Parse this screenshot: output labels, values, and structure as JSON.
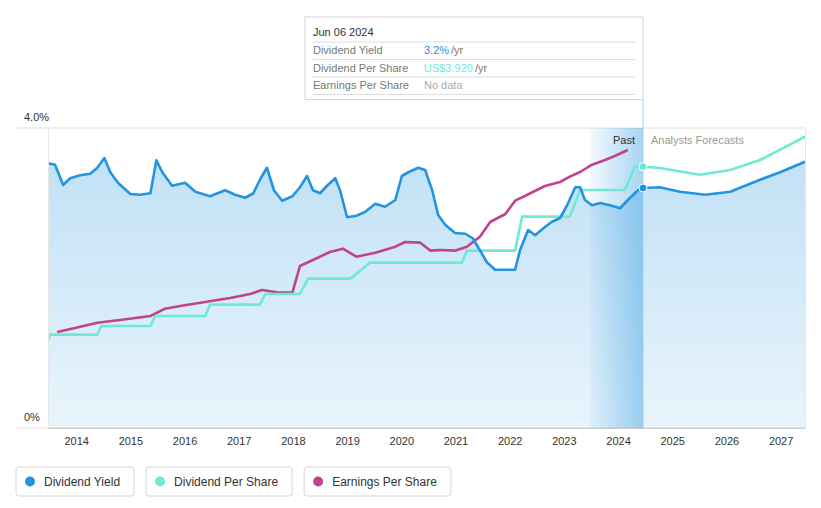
{
  "chart_data": {
    "type": "line",
    "xlim": [
      2013.48,
      2027.45
    ],
    "xticks": [
      2014,
      2015,
      2016,
      2017,
      2018,
      2019,
      2020,
      2021,
      2022,
      2023,
      2024,
      2025,
      2026,
      2027
    ],
    "ylim": [
      0,
      4
    ],
    "yticks": [
      {
        "value": 0,
        "label": "0%"
      },
      {
        "value": 4,
        "label": "4.0%"
      }
    ],
    "y2lim": [
      0,
      4.5
    ],
    "y2ticks": [],
    "tick_labels": "y",
    "grid": true,
    "legend": "bottom",
    "series": [
      {
        "name": "Dividend Yield",
        "color": "#2394df",
        "type": "area",
        "x": [
          2013.48,
          2013.61,
          2013.76,
          2013.89,
          2014.07,
          2014.26,
          2014.39,
          2014.52,
          2014.63,
          2014.77,
          2015.0,
          2015.18,
          2015.37,
          2015.48,
          2015.59,
          2015.77,
          2016.01,
          2016.2,
          2016.47,
          2016.75,
          2016.93,
          2017.12,
          2017.27,
          2017.39,
          2017.52,
          2017.65,
          2017.8,
          2017.99,
          2018.13,
          2018.26,
          2018.37,
          2018.5,
          2018.63,
          2018.78,
          2018.87,
          2019.0,
          2019.17,
          2019.33,
          2019.52,
          2019.7,
          2019.89,
          2020.01,
          2020.13,
          2020.31,
          2020.44,
          2020.57,
          2020.68,
          2020.81,
          2020.99,
          2021.18,
          2021.32,
          2021.45,
          2021.58,
          2021.73,
          2021.92,
          2022.1,
          2022.19,
          2022.34,
          2022.47,
          2022.65,
          2022.78,
          2022.93,
          2023.06,
          2023.21,
          2023.3,
          2023.39,
          2023.52,
          2023.67,
          2023.85,
          2024.04,
          2024.18,
          2024.37,
          2024.46,
          2024.77,
          2025.14,
          2025.61,
          2026.07,
          2026.62,
          2026.99,
          2027.45
        ],
        "values": [
          3.53,
          3.51,
          3.24,
          3.33,
          3.37,
          3.39,
          3.47,
          3.6,
          3.41,
          3.27,
          3.12,
          3.11,
          3.13,
          3.57,
          3.41,
          3.23,
          3.27,
          3.15,
          3.09,
          3.17,
          3.11,
          3.07,
          3.13,
          3.31,
          3.47,
          3.17,
          3.03,
          3.09,
          3.21,
          3.36,
          3.17,
          3.13,
          3.23,
          3.33,
          3.17,
          2.81,
          2.83,
          2.88,
          2.99,
          2.95,
          3.04,
          3.36,
          3.41,
          3.47,
          3.44,
          3.17,
          2.84,
          2.71,
          2.6,
          2.59,
          2.53,
          2.37,
          2.21,
          2.11,
          2.11,
          2.11,
          2.37,
          2.64,
          2.57,
          2.68,
          2.75,
          2.8,
          2.97,
          3.21,
          3.21,
          3.04,
          2.97,
          3.0,
          2.97,
          2.93,
          3.04,
          3.17,
          3.2,
          3.21,
          3.15,
          3.11,
          3.15,
          3.31,
          3.41,
          3.55
        ]
      },
      {
        "name": "Dividend Per Share",
        "color": "#6ee9d6",
        "axis": "y2",
        "x": [
          2013.48,
          2013.52,
          2014.39,
          2014.46,
          2015.37,
          2015.46,
          2016.38,
          2016.47,
          2017.39,
          2017.49,
          2018.13,
          2018.28,
          2019.06,
          2019.42,
          2021.12,
          2021.21,
          2022.1,
          2022.23,
          2023.11,
          2023.3,
          2024.13,
          2024.31,
          2024.46,
          2024.77,
          2025.51,
          2026.07,
          2026.62,
          2027.17,
          2027.45
        ],
        "values": [
          1.32,
          1.4,
          1.4,
          1.53,
          1.53,
          1.68,
          1.68,
          1.85,
          1.85,
          2.01,
          2.01,
          2.24,
          2.24,
          2.48,
          2.48,
          2.66,
          2.66,
          3.17,
          3.17,
          3.57,
          3.57,
          3.92,
          3.92,
          3.9,
          3.8,
          3.87,
          4.02,
          4.25,
          4.37
        ]
      },
      {
        "name": "Earnings Per Share",
        "color": "#c0438b",
        "axis": "y2",
        "x": [
          2013.65,
          2013.98,
          2014.39,
          2014.81,
          2015.37,
          2015.64,
          2015.92,
          2016.38,
          2016.84,
          2017.21,
          2017.43,
          2017.77,
          2017.99,
          2018.13,
          2018.37,
          2018.68,
          2018.92,
          2019.17,
          2019.52,
          2019.89,
          2020.07,
          2020.35,
          2020.54,
          2020.72,
          2020.99,
          2021.21,
          2021.45,
          2021.64,
          2021.92,
          2022.1,
          2022.28,
          2022.65,
          2022.93,
          2023.11,
          2023.3,
          2023.52,
          2023.76,
          2023.94,
          2024.18
        ],
        "values": [
          1.44,
          1.5,
          1.58,
          1.62,
          1.68,
          1.79,
          1.83,
          1.89,
          1.95,
          2.01,
          2.07,
          2.03,
          2.03,
          2.43,
          2.52,
          2.64,
          2.69,
          2.57,
          2.63,
          2.72,
          2.79,
          2.78,
          2.66,
          2.67,
          2.66,
          2.72,
          2.87,
          3.09,
          3.21,
          3.41,
          3.48,
          3.63,
          3.69,
          3.77,
          3.84,
          3.95,
          4.02,
          4.08,
          4.17
        ]
      }
    ],
    "annotations": [
      {
        "text": "Past",
        "x_range": [
          2023.48,
          2024.46
        ]
      },
      {
        "text": "Analysts Forecasts",
        "x": 2024.46
      }
    ],
    "tooltip": {
      "title": "Jun 06 2024",
      "x": 2024.46,
      "rows": [
        {
          "label": "Dividend Yield",
          "value": "3.2%",
          "unit": "/yr"
        },
        {
          "label": "Dividend Per Share",
          "value": "US$3.920",
          "unit": "/yr"
        },
        {
          "label": "Earnings Per Share",
          "value": "No data"
        }
      ]
    }
  }
}
